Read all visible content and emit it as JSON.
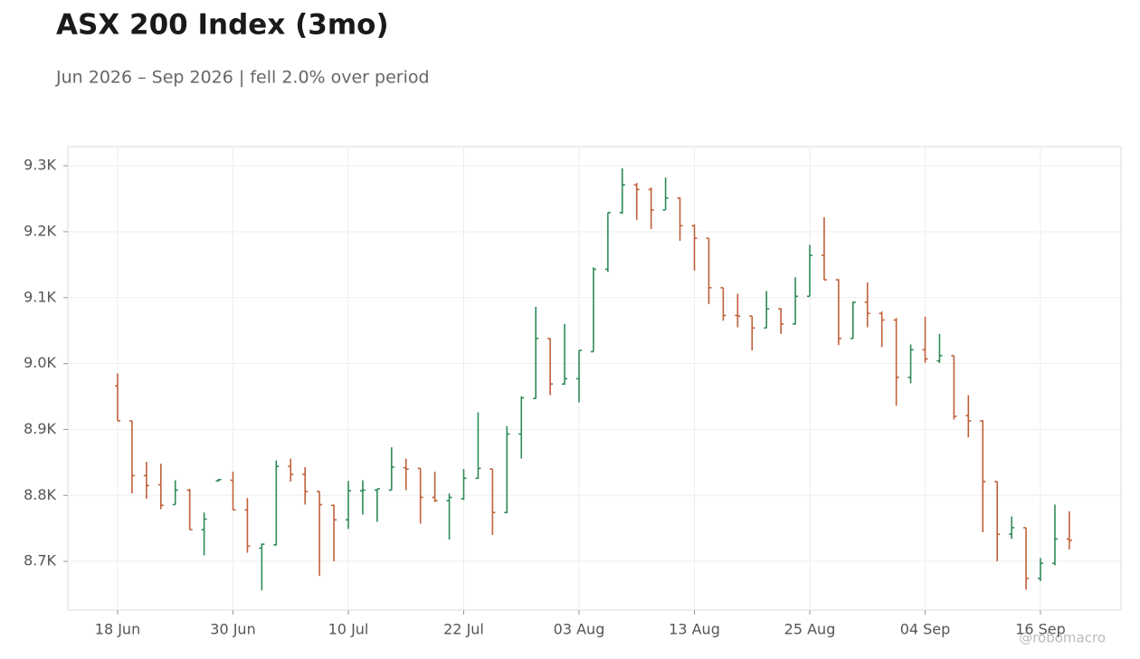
{
  "chart_data": {
    "type": "ohlc",
    "title": "ASX 200 Index (3mo)",
    "subtitle": "Jun 2026 – Sep 2026 | fell 2.0% over period",
    "watermark": "@robomacro",
    "categories": [
      "18 Jun",
      null,
      null,
      null,
      null,
      null,
      null,
      null,
      "30 Jun",
      null,
      null,
      null,
      null,
      null,
      null,
      null,
      "10 Jul",
      null,
      null,
      null,
      null,
      null,
      null,
      null,
      "22 Jul",
      null,
      null,
      null,
      null,
      null,
      null,
      null,
      "03 Aug",
      null,
      null,
      null,
      null,
      null,
      null,
      null,
      "13 Aug",
      null,
      null,
      null,
      null,
      null,
      null,
      null,
      "25 Aug",
      null,
      null,
      null,
      null,
      null,
      null,
      null,
      "04 Sep",
      null,
      null,
      null,
      null,
      null,
      null,
      null,
      "16 Sep",
      null,
      null
    ],
    "open": [
      8966,
      8913,
      8830,
      8816,
      8786,
      8808,
      8748,
      8822,
      8823,
      8778,
      8720,
      8725,
      8844,
      8832,
      8806,
      8785,
      8763,
      8807,
      8808,
      8808,
      8842,
      8841,
      8797,
      8792,
      8795,
      8826,
      8840,
      8774,
      8893,
      8947,
      9038,
      8969,
      8977,
      9018,
      9143,
      9229,
      9271,
      9264,
      9233,
      9251,
      9209,
      9190,
      9115,
      9073,
      9072,
      9054,
      9083,
      9060,
      9102,
      9164,
      9127,
      9038,
      9093,
      9076,
      9066,
      8979,
      9021,
      9004,
      9012,
      8921,
      8913,
      8821,
      8741,
      8751,
      8674,
      8697,
      8734
    ],
    "high": [
      8985,
      8913,
      8851,
      8848,
      8823,
      8810,
      8774,
      8825,
      8836,
      8796,
      8727,
      8853,
      8856,
      8843,
      8806,
      8786,
      8822,
      8823,
      8810,
      8873,
      8856,
      8841,
      8836,
      8803,
      8840,
      8926,
      8840,
      8905,
      8950,
      9086,
      9038,
      9060,
      9020,
      9146,
      9229,
      9296,
      9274,
      9267,
      9282,
      9252,
      9211,
      9190,
      9115,
      9106,
      9072,
      9110,
      9084,
      9131,
      9180,
      9222,
      9128,
      9094,
      9123,
      9079,
      9069,
      9029,
      9071,
      9045,
      9012,
      8952,
      8914,
      8821,
      8768,
      8751,
      8705,
      8786,
      8776
    ],
    "low": [
      8913,
      8803,
      8795,
      8779,
      8786,
      8748,
      8709,
      8821,
      8778,
      8713,
      8656,
      8724,
      8821,
      8786,
      8678,
      8700,
      8749,
      8771,
      8760,
      8808,
      8808,
      8757,
      8790,
      8733,
      8793,
      8825,
      8740,
      8773,
      8856,
      8947,
      8952,
      8968,
      8941,
      9018,
      9139,
      9227,
      9218,
      9204,
      9233,
      9186,
      9141,
      9090,
      9065,
      9055,
      9020,
      9054,
      9045,
      9059,
      9102,
      9127,
      9028,
      9038,
      9055,
      9025,
      8936,
      8970,
      9001,
      9001,
      8915,
      8888,
      8744,
      8700,
      8734,
      8657,
      8670,
      8694,
      8718
    ],
    "close": [
      8913,
      8830,
      8815,
      8785,
      8808,
      8748,
      8764,
      8824,
      8778,
      8723,
      8726,
      8844,
      8832,
      8806,
      8786,
      8763,
      8807,
      8808,
      8810,
      8843,
      8840,
      8797,
      8792,
      8797,
      8826,
      8841,
      8774,
      8893,
      8948,
      9038,
      8969,
      8977,
      9020,
      9143,
      9229,
      9271,
      9264,
      9233,
      9251,
      9209,
      9190,
      9115,
      9073,
      9072,
      9054,
      9083,
      9060,
      9102,
      9164,
      9127,
      9038,
      9093,
      9076,
      9066,
      8979,
      9021,
      9007,
      9012,
      8920,
      8913,
      8821,
      8741,
      8751,
      8674,
      8697,
      8734,
      8732
    ],
    "up_color": "#2e8b57",
    "down_color": "#c0603a",
    "ylim": [
      8626,
      9329
    ],
    "yticks": [
      {
        "value": 8700,
        "label": "8.7K"
      },
      {
        "value": 8800,
        "label": "8.8K"
      },
      {
        "value": 8900,
        "label": "8.9K"
      },
      {
        "value": 9000,
        "label": "9.0K"
      },
      {
        "value": 9100,
        "label": "9.1K"
      },
      {
        "value": 9200,
        "label": "9.2K"
      },
      {
        "value": 9300,
        "label": "9.3K"
      }
    ],
    "grid": true
  }
}
